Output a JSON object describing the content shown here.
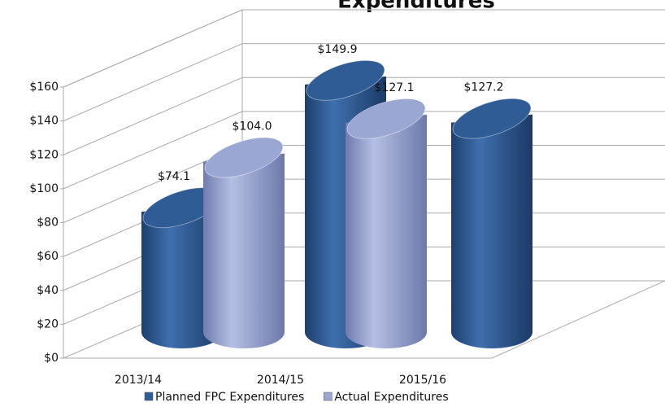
{
  "chart_data": {
    "type": "bar",
    "title": "Expenditures",
    "categories": [
      "2013/14",
      "2014/15",
      "2015/16"
    ],
    "series": [
      {
        "name": "Planned FPC Expenditures",
        "color": "#2f5c94",
        "values": [
          74.1,
          149.9,
          127.2
        ],
        "value_labels": [
          "$74.1",
          "$149.9",
          "$127.2"
        ]
      },
      {
        "name": "Actual Expenditures",
        "color": "#9aa7d3",
        "values": [
          104.0,
          127.1,
          null
        ],
        "value_labels": [
          "$104.0",
          "$127.1",
          null
        ]
      }
    ],
    "ylim": [
      0,
      160
    ],
    "yticks": [
      {
        "value": 0,
        "label": "$0"
      },
      {
        "value": 20,
        "label": "$20"
      },
      {
        "value": 40,
        "label": "$40"
      },
      {
        "value": 60,
        "label": "$60"
      },
      {
        "value": 80,
        "label": "$80"
      },
      {
        "value": 100,
        "label": "$100"
      },
      {
        "value": 120,
        "label": "$120"
      },
      {
        "value": 140,
        "label": "$140"
      },
      {
        "value": 160,
        "label": "$160"
      }
    ],
    "grid": true
  }
}
